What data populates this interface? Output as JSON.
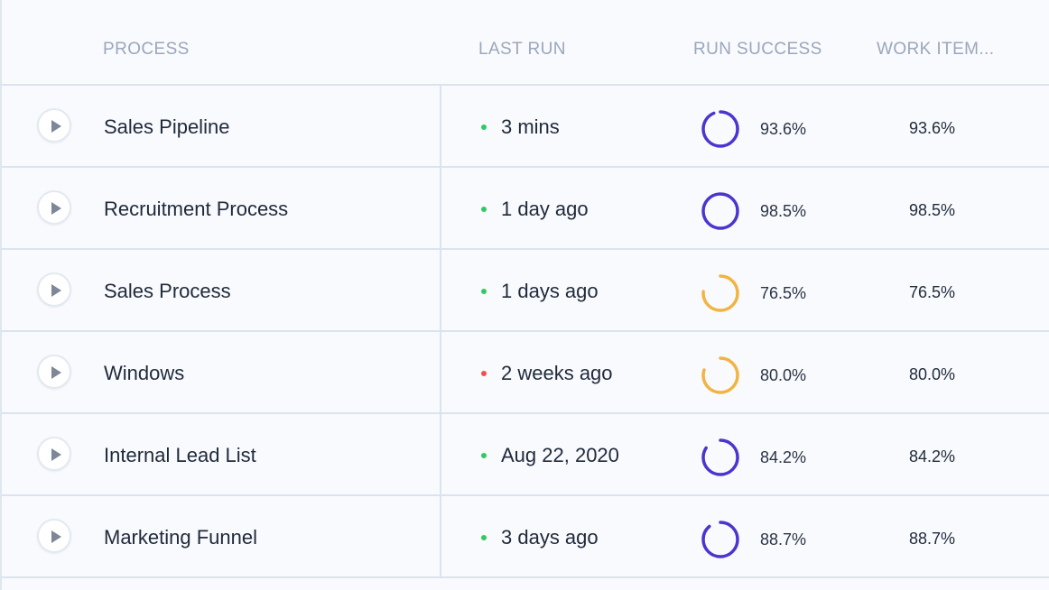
{
  "header": {
    "process": "PROCESS",
    "last_run": "LAST RUN",
    "run_success": "RUN SUCCESS",
    "work_items": "WORK ITEM..."
  },
  "colors": {
    "success_ok": "#4b35cf",
    "success_warn": "#f2b441",
    "status_ok": "#2ecb63",
    "status_error": "#f0504c"
  },
  "rows": [
    {
      "name": "Sales Pipeline",
      "last_run": "3 mins",
      "status": "ok",
      "run_success": "93.6%",
      "success_value": 93.6,
      "work_items": "93.6%"
    },
    {
      "name": "Recruitment Process",
      "last_run": "1 day ago",
      "status": "ok",
      "run_success": "98.5%",
      "success_value": 98.5,
      "work_items": "98.5%"
    },
    {
      "name": "Sales Process",
      "last_run": "1 days ago",
      "status": "ok",
      "run_success": "76.5%",
      "success_value": 76.5,
      "work_items": "76.5%"
    },
    {
      "name": "Windows",
      "last_run": "2 weeks ago",
      "status": "error",
      "run_success": "80.0%",
      "success_value": 80.0,
      "work_items": "80.0%"
    },
    {
      "name": "Internal Lead List",
      "last_run": "Aug 22, 2020",
      "status": "ok",
      "run_success": "84.2%",
      "success_value": 84.2,
      "work_items": "84.2%"
    },
    {
      "name": "Marketing Funnel",
      "last_run": "3 days ago",
      "status": "ok",
      "run_success": "88.7%",
      "success_value": 88.7,
      "work_items": "88.7%"
    }
  ]
}
